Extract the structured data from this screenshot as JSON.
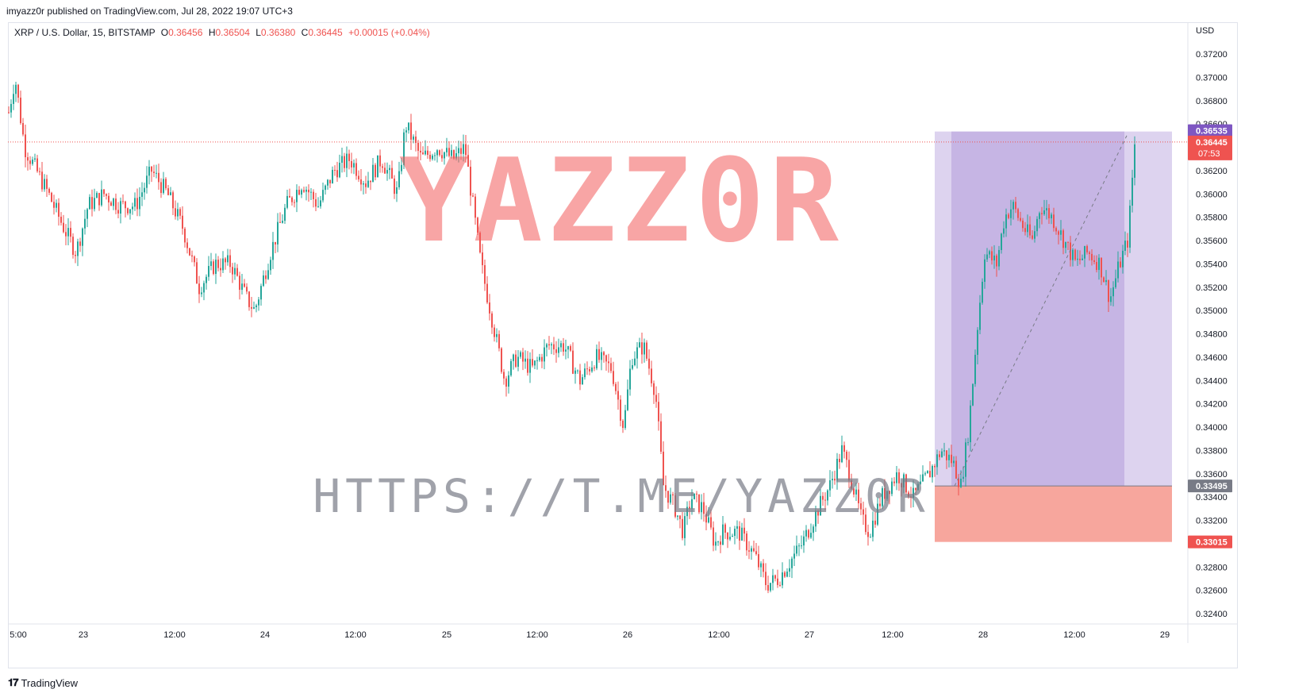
{
  "header": {
    "published": "imyazz0r published on TradingView.com, Jul 28, 2022 19:07 UTC+3"
  },
  "legend": {
    "symbol": "XRP / U.S. Dollar, 15, BITSTAMP",
    "o_label": "O",
    "o": "0.36456",
    "h_label": "H",
    "h": "0.36504",
    "l_label": "L",
    "l": "0.36380",
    "c_label": "C",
    "c": "0.36445",
    "change": "+0.00015 (+0.04%)"
  },
  "footer": {
    "brand": "TradingView",
    "brand_icon": "tradingview-logo-icon"
  },
  "watermark": {
    "big": "YAZZ0R",
    "url": "HTTPS://T.ME/YAZZ0R"
  },
  "colors": {
    "up": "#26a69a",
    "down": "#ef5350",
    "target_zone": "#b39ddb",
    "stop_zone": "#f7a198",
    "entry_label": "#787b86",
    "target_label": "#7e57c2",
    "last_price": "#ef5350"
  },
  "chart_data": {
    "type": "candlestick",
    "timeframe": "15",
    "exchange": "BITSTAMP",
    "currency_label": "USD",
    "y_ticks": [
      "0.37200",
      "0.37000",
      "0.36800",
      "0.36600",
      "0.36200",
      "0.36000",
      "0.35800",
      "0.35600",
      "0.35400",
      "0.35200",
      "0.35000",
      "0.34800",
      "0.34600",
      "0.34400",
      "0.34200",
      "0.34000",
      "0.33800",
      "0.33600",
      "0.33400",
      "0.33200",
      "0.32800",
      "0.32600",
      "0.32400"
    ],
    "ylim": [
      0.3232,
      0.3733
    ],
    "x_ticks": [
      "5:00",
      "23",
      "12:00",
      "24",
      "12:00",
      "25",
      "12:00",
      "26",
      "12:00",
      "27",
      "12:00",
      "28",
      "12:00",
      "29"
    ],
    "last_price": {
      "value": "0.36445",
      "countdown": "07:53"
    },
    "position": {
      "type": "long",
      "entry": "0.33495",
      "target": "0.36535",
      "stop": "0.33015"
    },
    "price_path": [
      [
        0,
        0.367
      ],
      [
        8,
        0.37
      ],
      [
        20,
        0.364
      ],
      [
        35,
        0.362
      ],
      [
        50,
        0.36
      ],
      [
        70,
        0.357
      ],
      [
        85,
        0.355
      ],
      [
        100,
        0.359
      ],
      [
        120,
        0.36
      ],
      [
        140,
        0.359
      ],
      [
        160,
        0.359
      ],
      [
        180,
        0.362
      ],
      [
        200,
        0.36
      ],
      [
        220,
        0.357
      ],
      [
        240,
        0.352
      ],
      [
        260,
        0.354
      ],
      [
        280,
        0.354
      ],
      [
        300,
        0.351
      ],
      [
        310,
        0.35
      ],
      [
        330,
        0.355
      ],
      [
        350,
        0.359
      ],
      [
        370,
        0.361
      ],
      [
        390,
        0.359
      ],
      [
        410,
        0.362
      ],
      [
        430,
        0.363
      ],
      [
        450,
        0.361
      ],
      [
        470,
        0.363
      ],
      [
        490,
        0.36
      ],
      [
        500,
        0.366
      ],
      [
        520,
        0.363
      ],
      [
        540,
        0.364
      ],
      [
        560,
        0.363
      ],
      [
        575,
        0.364
      ],
      [
        585,
        0.359
      ],
      [
        595,
        0.354
      ],
      [
        610,
        0.349
      ],
      [
        625,
        0.344
      ],
      [
        640,
        0.346
      ],
      [
        660,
        0.345
      ],
      [
        680,
        0.347
      ],
      [
        700,
        0.347
      ],
      [
        720,
        0.344
      ],
      [
        740,
        0.346
      ],
      [
        760,
        0.345
      ],
      [
        775,
        0.34
      ],
      [
        785,
        0.346
      ],
      [
        800,
        0.347
      ],
      [
        815,
        0.343
      ],
      [
        825,
        0.335
      ],
      [
        840,
        0.333
      ],
      [
        850,
        0.331
      ],
      [
        860,
        0.334
      ],
      [
        875,
        0.333
      ],
      [
        890,
        0.33
      ],
      [
        900,
        0.331
      ],
      [
        920,
        0.331
      ],
      [
        940,
        0.329
      ],
      [
        955,
        0.3265
      ],
      [
        970,
        0.327
      ],
      [
        985,
        0.3285
      ],
      [
        1000,
        0.33
      ],
      [
        1020,
        0.333
      ],
      [
        1035,
        0.335
      ],
      [
        1050,
        0.338
      ],
      [
        1060,
        0.336
      ],
      [
        1075,
        0.332
      ],
      [
        1085,
        0.331
      ],
      [
        1100,
        0.334
      ],
      [
        1120,
        0.336
      ],
      [
        1140,
        0.334
      ],
      [
        1160,
        0.336
      ],
      [
        1175,
        0.338
      ],
      [
        1190,
        0.337
      ],
      [
        1200,
        0.335
      ],
      [
        1210,
        0.34
      ],
      [
        1220,
        0.348
      ],
      [
        1230,
        0.355
      ],
      [
        1245,
        0.354
      ],
      [
        1255,
        0.358
      ],
      [
        1265,
        0.359
      ],
      [
        1280,
        0.357
      ],
      [
        1290,
        0.356
      ],
      [
        1300,
        0.359
      ],
      [
        1315,
        0.358
      ],
      [
        1330,
        0.356
      ],
      [
        1345,
        0.354
      ],
      [
        1360,
        0.355
      ],
      [
        1375,
        0.354
      ],
      [
        1388,
        0.351
      ],
      [
        1400,
        0.354
      ],
      [
        1410,
        0.356
      ],
      [
        1415,
        0.36
      ],
      [
        1418,
        0.364
      ],
      [
        1420,
        0.3644
      ]
    ]
  }
}
